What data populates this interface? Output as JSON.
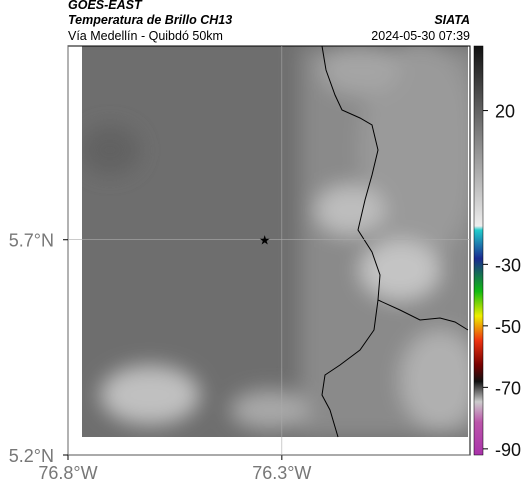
{
  "header": {
    "title": "GOES-EAST",
    "subtitle": "Temperatura de Brillo CH13",
    "route": "Vía Medellín - Quibdó 50km",
    "source": "SIATA",
    "datetime": "2024-05-30 07:39"
  },
  "map": {
    "xlim": [
      -76.8,
      -75.86
    ],
    "ylim": [
      5.2,
      6.15
    ],
    "xticks": [
      {
        "value": -76.8,
        "label": "76.8°W"
      },
      {
        "value": -76.3,
        "label": "76.3°W"
      }
    ],
    "yticks": [
      {
        "value": 5.2,
        "label": "5.2°N"
      },
      {
        "value": 5.7,
        "label": "5.7°N"
      }
    ],
    "marker": {
      "lon": -76.34,
      "lat": 5.7
    }
  },
  "colorbar": {
    "lim": [
      -92,
      41
    ],
    "ticks": [
      20,
      -30,
      -50,
      -70,
      -90
    ]
  }
}
